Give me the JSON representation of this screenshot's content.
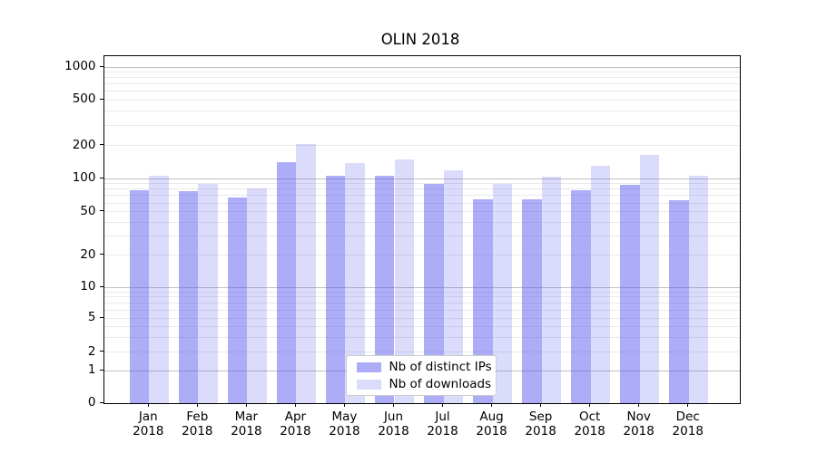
{
  "figure": {
    "title": "OLIN 2018"
  },
  "chart_data": {
    "type": "bar",
    "title": "OLIN 2018",
    "categories": [
      "Jan 2018",
      "Feb 2018",
      "Mar 2018",
      "Apr 2018",
      "May 2018",
      "Jun 2018",
      "Jul 2018",
      "Aug 2018",
      "Sep 2018",
      "Oct 2018",
      "Nov 2018",
      "Dec 2018"
    ],
    "x_tick_line1": [
      "Jan",
      "Feb",
      "Mar",
      "Apr",
      "May",
      "Jun",
      "Jul",
      "Aug",
      "Sep",
      "Oct",
      "Nov",
      "Dec"
    ],
    "x_tick_line2": [
      "2018",
      "2018",
      "2018",
      "2018",
      "2018",
      "2018",
      "2018",
      "2018",
      "2018",
      "2018",
      "2018",
      "2018"
    ],
    "series": [
      {
        "name": "Nb of distinct IPs",
        "values": [
          78,
          77,
          67,
          140,
          106,
          106,
          89,
          65,
          65,
          78,
          87,
          64
        ],
        "color_hex": "#a9a9f4",
        "fill": "rgba(90,90,240,0.5)"
      },
      {
        "name": "Nb of downloads",
        "values": [
          105,
          90,
          81,
          207,
          137,
          149,
          118,
          90,
          103,
          130,
          164,
          106
        ],
        "color_hex": "#dadaf9",
        "fill": "rgba(90,90,240,0.22)"
      }
    ],
    "yscale": "symlog",
    "yticks": [
      0,
      1,
      2,
      5,
      10,
      20,
      50,
      100,
      200,
      500,
      1000
    ],
    "ytick_labels": [
      "0",
      "1",
      "2",
      "5",
      "10",
      "20",
      "50",
      "100",
      "200",
      "500",
      "1000"
    ],
    "major_grid_values": [
      1,
      10,
      100,
      1000
    ],
    "ylim": [
      0,
      1300
    ],
    "grid": true,
    "legend_position": "lower center",
    "grid_major_color": "#c0c0c0",
    "grid_minor_color": "#eaeaea",
    "axis_color": "#000000"
  }
}
